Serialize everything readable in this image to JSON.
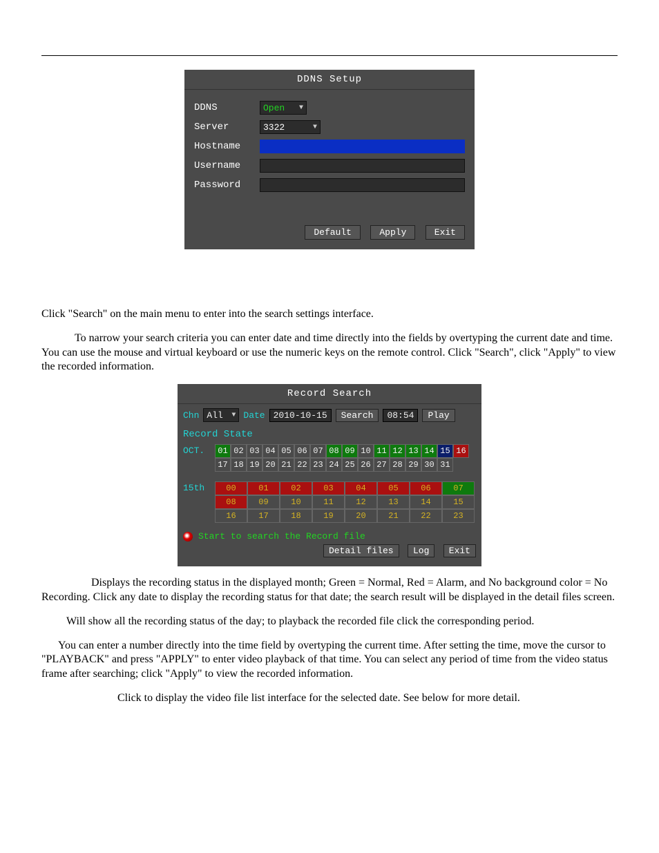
{
  "ddns_panel": {
    "title": "DDNS Setup",
    "rows": {
      "ddns": {
        "label": "DDNS",
        "value": "Open"
      },
      "server": {
        "label": "Server",
        "value": "3322"
      },
      "hostname": {
        "label": "Hostname"
      },
      "username": {
        "label": "Username"
      },
      "password": {
        "label": "Password"
      }
    },
    "buttons": [
      "Default",
      "Apply",
      "Exit"
    ]
  },
  "text": {
    "p1": "Click \"Search\" on the main menu to enter into the search settings interface.",
    "p2": "To narrow your search criteria you can enter date and time directly into the fields by overtyping the current date and time. You can use the mouse and virtual keyboard or use the numeric keys on the remote control. Click \"Search\", click \"Apply\" to view the recorded information.",
    "p3": "Displays the recording status in the displayed month; Green = Normal, Red = Alarm, and No background color = No Recording. Click any date to display the recording status for that date; the search result will be displayed in the detail files screen.",
    "p4": "Will show all the recording status of the day; to playback the recorded file click the corresponding period.",
    "p5": "You can enter a number directly into the time field by overtyping the current time. After setting the time, move the cursor to \"PLAYBACK\" and press \"APPLY\" to enter video playback of that time. You can select any period of time from the video status frame after searching; click \"Apply\" to view the recorded information.",
    "p6": "Click to display the video file list interface for the selected date. See below for more detail."
  },
  "rs_panel": {
    "title": "Record Search",
    "chn_label": "Chn",
    "chn_value": "All",
    "date_label": "Date",
    "date_value": "2010-10-15",
    "search_btn": "Search",
    "time_value": "08:54",
    "play_btn": "Play",
    "record_state": "Record State",
    "month_label": "OCT.",
    "days": [
      {
        "n": "01",
        "c": "green"
      },
      {
        "n": "02",
        "c": "none"
      },
      {
        "n": "03",
        "c": "none"
      },
      {
        "n": "04",
        "c": "none"
      },
      {
        "n": "05",
        "c": "none"
      },
      {
        "n": "06",
        "c": "none"
      },
      {
        "n": "07",
        "c": "none"
      },
      {
        "n": "08",
        "c": "green"
      },
      {
        "n": "09",
        "c": "green"
      },
      {
        "n": "10",
        "c": "none"
      },
      {
        "n": "11",
        "c": "green"
      },
      {
        "n": "12",
        "c": "green"
      },
      {
        "n": "13",
        "c": "green"
      },
      {
        "n": "14",
        "c": "green"
      },
      {
        "n": "15",
        "c": "darkblue"
      },
      {
        "n": "16",
        "c": "red"
      },
      {
        "n": "17",
        "c": "none"
      },
      {
        "n": "18",
        "c": "none"
      },
      {
        "n": "19",
        "c": "none"
      },
      {
        "n": "20",
        "c": "none"
      },
      {
        "n": "21",
        "c": "none"
      },
      {
        "n": "22",
        "c": "none"
      },
      {
        "n": "23",
        "c": "none"
      },
      {
        "n": "24",
        "c": "none"
      },
      {
        "n": "25",
        "c": "none"
      },
      {
        "n": "26",
        "c": "none"
      },
      {
        "n": "27",
        "c": "none"
      },
      {
        "n": "28",
        "c": "none"
      },
      {
        "n": "29",
        "c": "none"
      },
      {
        "n": "30",
        "c": "none"
      },
      {
        "n": "31",
        "c": "none"
      }
    ],
    "day_label": "15th",
    "hours": [
      {
        "n": "00",
        "c": "red"
      },
      {
        "n": "01",
        "c": "red"
      },
      {
        "n": "02",
        "c": "red"
      },
      {
        "n": "03",
        "c": "red"
      },
      {
        "n": "04",
        "c": "red"
      },
      {
        "n": "05",
        "c": "red"
      },
      {
        "n": "06",
        "c": "red"
      },
      {
        "n": "07",
        "c": "green"
      },
      {
        "n": "08",
        "c": "red"
      },
      {
        "n": "09",
        "c": "none"
      },
      {
        "n": "10",
        "c": "none"
      },
      {
        "n": "11",
        "c": "none"
      },
      {
        "n": "12",
        "c": "none"
      },
      {
        "n": "13",
        "c": "none"
      },
      {
        "n": "14",
        "c": "none"
      },
      {
        "n": "15",
        "c": "none"
      },
      {
        "n": "16",
        "c": "none"
      },
      {
        "n": "17",
        "c": "none"
      },
      {
        "n": "18",
        "c": "none"
      },
      {
        "n": "19",
        "c": "none"
      },
      {
        "n": "20",
        "c": "none"
      },
      {
        "n": "21",
        "c": "none"
      },
      {
        "n": "22",
        "c": "none"
      },
      {
        "n": "23",
        "c": "none"
      }
    ],
    "status_msg": "Start to search the Record file",
    "footer_btns": [
      "Detail files",
      "Log",
      "Exit"
    ]
  }
}
